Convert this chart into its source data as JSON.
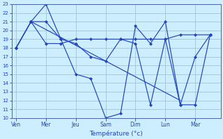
{
  "xlabel": "Température (°c)",
  "background_color": "#cceeff",
  "line_color": "#2244bb",
  "grid_color": "#99bbcc",
  "ylim": [
    10,
    23
  ],
  "yticks": [
    10,
    11,
    12,
    13,
    14,
    15,
    16,
    17,
    18,
    19,
    20,
    21,
    22,
    23
  ],
  "days": [
    "Ven",
    "Mer",
    "Jeu",
    "Sam",
    "Dim",
    "Lun",
    "Mar"
  ],
  "day_positions": [
    0,
    2,
    4,
    6,
    8,
    10,
    12
  ],
  "xlim": [
    -0.3,
    13.7
  ],
  "series_flat": {
    "x": [
      0,
      1,
      2,
      3,
      4,
      5,
      6,
      7,
      8,
      9,
      10,
      11,
      12,
      13
    ],
    "y": [
      18,
      21,
      18.5,
      18.5,
      19,
      19,
      19,
      19,
      19,
      19,
      19,
      19.5,
      19.5,
      19.5
    ]
  },
  "series_wave": {
    "x": [
      0,
      1,
      2,
      3,
      4,
      5,
      6,
      7,
      8,
      9,
      10,
      11,
      12,
      13
    ],
    "y": [
      18,
      21,
      23,
      19,
      15,
      14.5,
      10,
      10.5,
      20.5,
      18.5,
      21,
      11.5,
      11.5,
      19.5
    ]
  },
  "series_mid": {
    "x": [
      0,
      1,
      2,
      3,
      4,
      5,
      6,
      7,
      8,
      9,
      10,
      11,
      12,
      13
    ],
    "y": [
      18,
      21,
      21,
      19,
      18.5,
      17,
      16.5,
      19,
      18.5,
      11.5,
      19,
      11.5,
      17,
      19.5
    ]
  },
  "trend": {
    "x": [
      1,
      11
    ],
    "y": [
      21,
      12
    ]
  }
}
